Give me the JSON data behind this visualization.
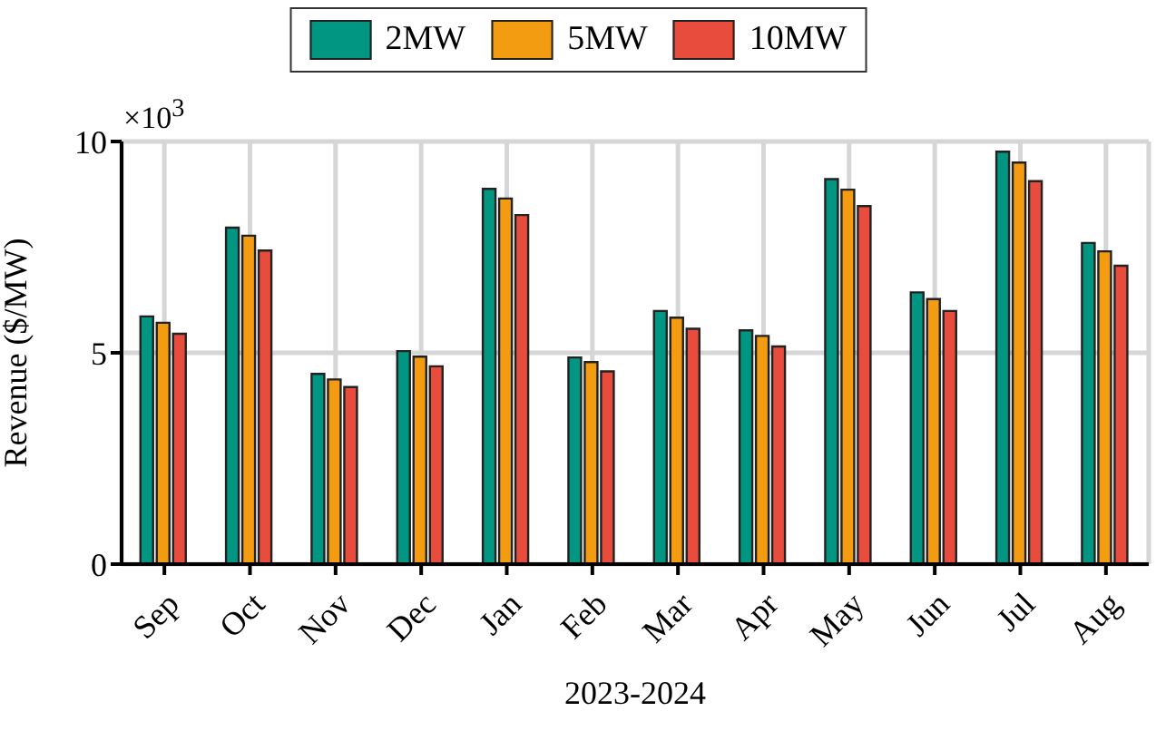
{
  "chart_data": {
    "type": "bar",
    "xlabel": "2023-2024",
    "ylabel": "Revenue ($/MW)",
    "annotations": [
      "×10$^{3}$"
    ],
    "categories": [
      "Sep",
      "Oct",
      "Nov",
      "Dec",
      "Jan",
      "Feb",
      "Mar",
      "Apr",
      "May",
      "Jun",
      "Jul",
      "Aug"
    ],
    "series": [
      {
        "name": "2MW",
        "color": "#009682",
        "values": [
          5.86,
          7.96,
          4.5,
          5.04,
          8.88,
          4.89,
          5.99,
          5.53,
          9.11,
          6.43,
          9.76,
          7.6
        ]
      },
      {
        "name": "5MW",
        "color": "#f39c12",
        "values": [
          5.71,
          7.77,
          4.37,
          4.91,
          8.65,
          4.78,
          5.83,
          5.4,
          8.86,
          6.27,
          9.5,
          7.4
        ]
      },
      {
        "name": "10MW",
        "color": "#e74c3c",
        "values": [
          5.45,
          7.42,
          4.19,
          4.68,
          8.26,
          4.56,
          5.57,
          5.15,
          8.47,
          5.99,
          9.06,
          7.06
        ]
      }
    ],
    "ylim": [
      0,
      10
    ],
    "yticks": [
      0,
      5,
      10
    ],
    "grid": true,
    "legend": "top"
  }
}
